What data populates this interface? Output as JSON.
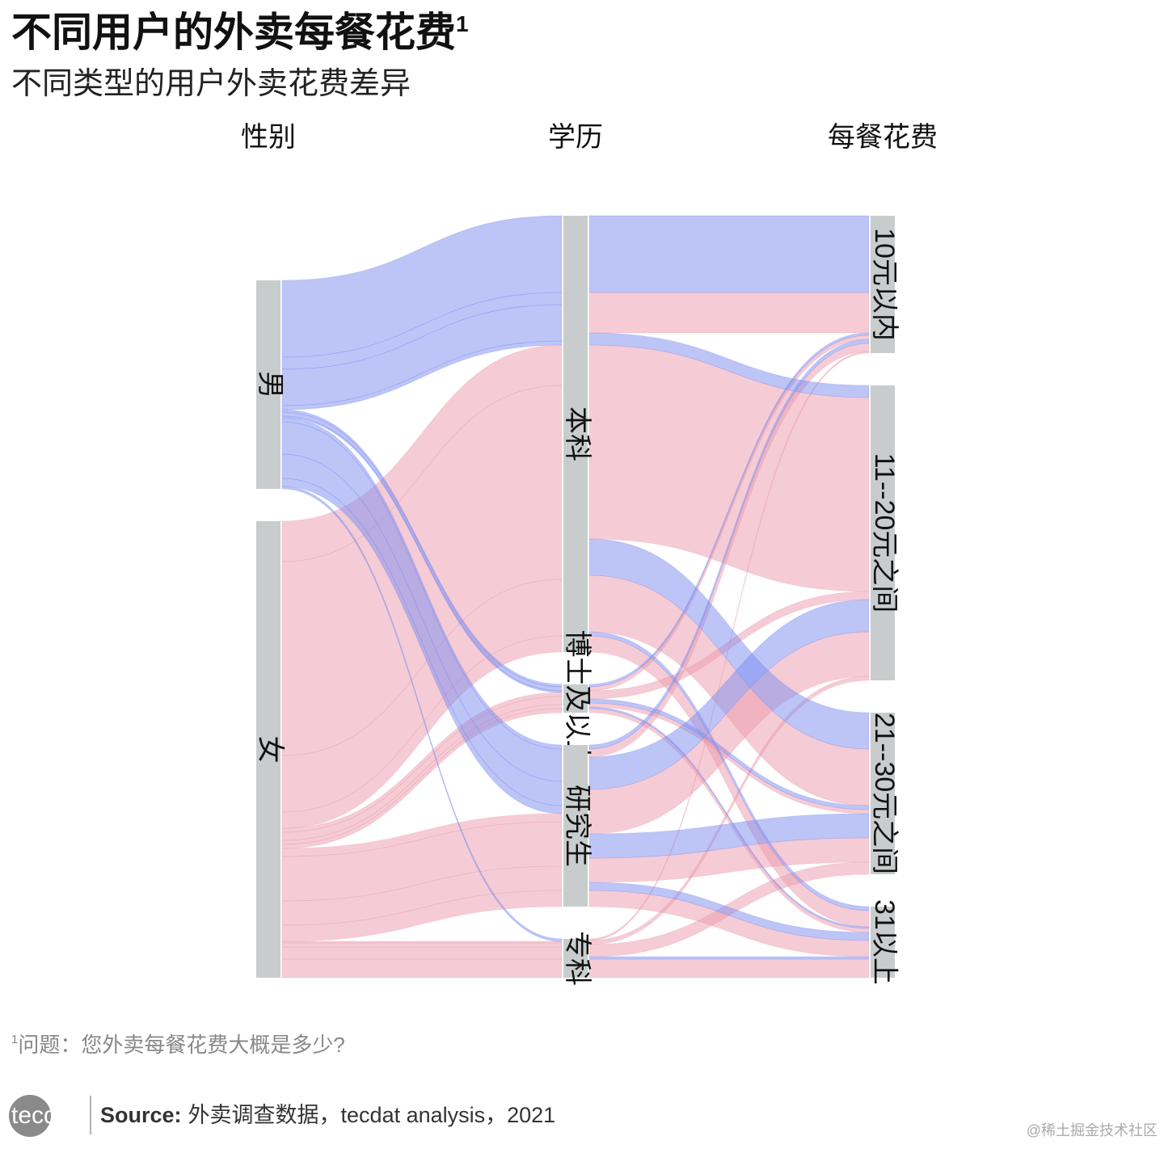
{
  "chart_data": {
    "type": "alluvial",
    "title": "不同用户的外卖每餐花费",
    "title_marker": "1",
    "subtitle": "不同类型的用户外卖花费差异",
    "axes": [
      {
        "name": "性别",
        "nodes": [
          "男",
          "女"
        ]
      },
      {
        "name": "学历",
        "nodes": [
          "本科",
          "博士及以上",
          "研究生",
          "专科"
        ]
      },
      {
        "name": "每餐花费",
        "nodes": [
          "10元以内",
          "11--20元之间",
          "21--30元之间",
          "31以上"
        ]
      }
    ],
    "colors": [
      "#7b8cf0",
      "#ec9aab"
    ],
    "flows": [
      {
        "nodes": [
          0,
          0,
          0
        ],
        "value": 95
      },
      {
        "nodes": [
          0,
          0,
          1
        ],
        "value": 15
      },
      {
        "nodes": [
          0,
          0,
          2
        ],
        "value": 45
      },
      {
        "nodes": [
          0,
          0,
          3
        ],
        "value": 5
      },
      {
        "nodes": [
          0,
          1,
          0
        ],
        "value": 3
      },
      {
        "nodes": [
          0,
          1,
          2
        ],
        "value": 5
      },
      {
        "nodes": [
          0,
          1,
          3
        ],
        "value": 2
      },
      {
        "nodes": [
          0,
          2,
          0
        ],
        "value": 5
      },
      {
        "nodes": [
          0,
          2,
          1
        ],
        "value": 40
      },
      {
        "nodes": [
          0,
          2,
          2
        ],
        "value": 30
      },
      {
        "nodes": [
          0,
          2,
          3
        ],
        "value": 10
      },
      {
        "nodes": [
          0,
          3,
          3
        ],
        "value": 3
      },
      {
        "nodes": [
          1,
          0,
          0
        ],
        "value": 50
      },
      {
        "nodes": [
          1,
          0,
          1
        ],
        "value": 240
      },
      {
        "nodes": [
          1,
          0,
          2
        ],
        "value": 70
      },
      {
        "nodes": [
          1,
          0,
          3
        ],
        "value": 20
      },
      {
        "nodes": [
          1,
          1,
          0
        ],
        "value": 5
      },
      {
        "nodes": [
          1,
          1,
          1
        ],
        "value": 10
      },
      {
        "nodes": [
          1,
          1,
          2
        ],
        "value": 5
      },
      {
        "nodes": [
          1,
          1,
          3
        ],
        "value": 5
      },
      {
        "nodes": [
          1,
          2,
          0
        ],
        "value": 10
      },
      {
        "nodes": [
          1,
          2,
          1
        ],
        "value": 55
      },
      {
        "nodes": [
          1,
          2,
          2
        ],
        "value": 30
      },
      {
        "nodes": [
          1,
          2,
          3
        ],
        "value": 20
      },
      {
        "nodes": [
          1,
          3,
          0
        ],
        "value": 2
      },
      {
        "nodes": [
          1,
          3,
          1
        ],
        "value": 5
      },
      {
        "nodes": [
          1,
          3,
          2
        ],
        "value": 15
      },
      {
        "nodes": [
          1,
          3,
          3
        ],
        "value": 23
      }
    ]
  },
  "footnote": {
    "marker": "1",
    "text": "问题：您外卖每餐花费大概是多少?"
  },
  "source": {
    "label": "Source:",
    "text": "外卖调查数据，tecdat analysis，2021"
  },
  "logo": "tecdat",
  "watermark": "@稀土掘金技术社区"
}
